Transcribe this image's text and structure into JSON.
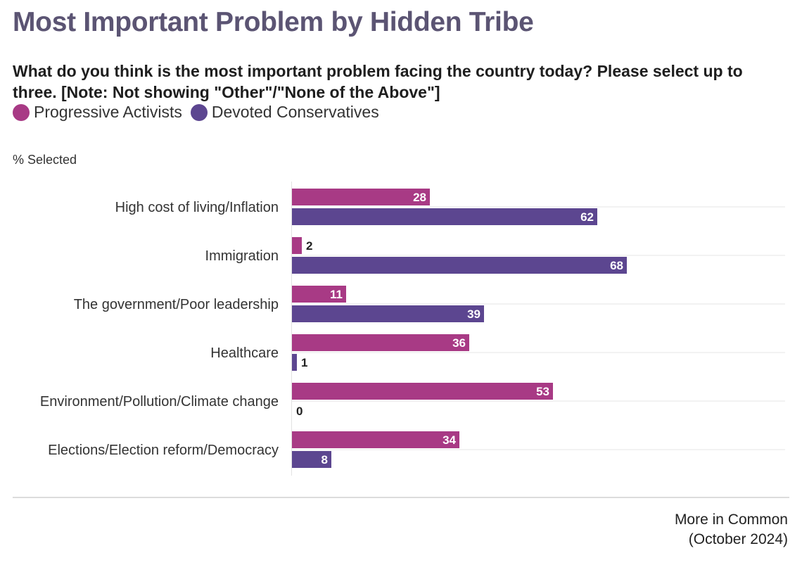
{
  "title": "Most Important Problem by Hidden Tribe",
  "subtitle": "What do you think is the most important problem facing the country today? Please select up to three. [Note: Not showing \"Other\"/\"None of the Above\"]",
  "unit_label": "% Selected",
  "source": "More in Common (October 2024)",
  "chart_data": {
    "type": "bar",
    "orientation": "horizontal",
    "ylabel": "% Selected",
    "categories": [
      "High cost of living/Inflation",
      "Immigration",
      "The government/Poor leadership",
      "Healthcare",
      "Environment/Pollution/Climate change",
      "Elections/Election reform/Democracy"
    ],
    "series": [
      {
        "name": "Progressive Activists",
        "color": "#a83a85",
        "values": [
          28,
          2,
          11,
          36,
          53,
          34
        ]
      },
      {
        "name": "Devoted Conservatives",
        "color": "#5c4690",
        "values": [
          62,
          68,
          39,
          1,
          0,
          8
        ]
      }
    ],
    "xlim": [
      0,
      100
    ],
    "legend_position": "top-left",
    "grid": true,
    "data_labels": true
  }
}
